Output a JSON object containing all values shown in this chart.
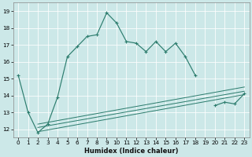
{
  "xlabel": "Humidex (Indice chaleur)",
  "bg_color": "#cce8e8",
  "line_color": "#2d7d6e",
  "grid_color": "#ffffff",
  "x_main": [
    0,
    1,
    2,
    3,
    4,
    5,
    6,
    7,
    8,
    9,
    10,
    11,
    12,
    13,
    14,
    15,
    16,
    17,
    18,
    20,
    21,
    22,
    23
  ],
  "y_main": [
    15.2,
    13.0,
    11.8,
    12.3,
    13.9,
    16.3,
    16.9,
    17.5,
    17.6,
    18.9,
    18.3,
    17.2,
    17.1,
    16.6,
    17.2,
    16.6,
    17.1,
    16.3,
    15.2,
    13.4,
    13.6,
    13.5,
    14.1
  ],
  "diag_lines": [
    {
      "x": [
        2,
        23
      ],
      "y": [
        11.85,
        14.05
      ]
    },
    {
      "x": [
        2,
        23
      ],
      "y": [
        12.1,
        14.25
      ]
    },
    {
      "x": [
        2,
        23
      ],
      "y": [
        12.3,
        14.5
      ]
    }
  ],
  "ylim": [
    11.5,
    19.5
  ],
  "xlim": [
    -0.5,
    23.5
  ],
  "yticks": [
    12,
    13,
    14,
    15,
    16,
    17,
    18,
    19
  ],
  "xticks": [
    0,
    1,
    2,
    3,
    4,
    5,
    6,
    7,
    8,
    9,
    10,
    11,
    12,
    13,
    14,
    15,
    16,
    17,
    18,
    19,
    20,
    21,
    22,
    23
  ],
  "tick_labelsize": 5.2,
  "xlabel_fontsize": 6.0,
  "linewidth": 0.85,
  "marker_size": 3.5,
  "marker_ew": 0.8
}
